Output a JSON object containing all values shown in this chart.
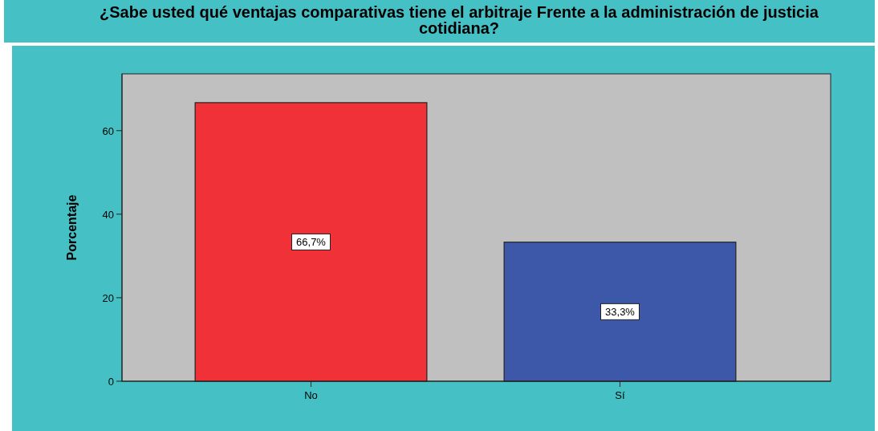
{
  "chart_data": {
    "type": "bar",
    "title": "¿Sabe usted qué ventajas comparativas tiene el arbitraje Frente a la administración de justicia cotidiana?",
    "ylabel": "Porcentaje",
    "categories": [
      "No",
      "Sí"
    ],
    "values": [
      66.7,
      33.3
    ],
    "value_labels": [
      "66,7%",
      "33,3%"
    ],
    "colors": [
      "#f03238",
      "#3d58a9"
    ],
    "ylim": [
      0,
      73.6
    ],
    "yticks": [
      0,
      20,
      40,
      60
    ],
    "grid": false
  }
}
